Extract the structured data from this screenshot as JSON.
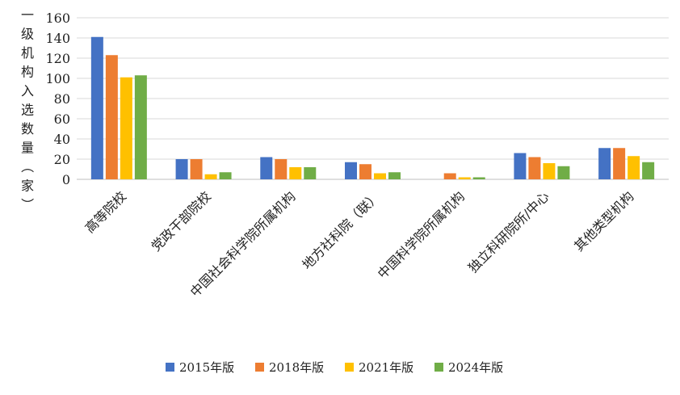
{
  "chart_data": {
    "type": "bar",
    "ylabel": "一级机构入选数量（家）",
    "categories": [
      "高等院校",
      "党政干部院校",
      "中国社会科学院所属机构",
      "地方社科院（联）",
      "中国科学院所属机构",
      "独立科研院所/中心",
      "其他类型机构"
    ],
    "series": [
      {
        "name": "2015年版",
        "color": "#4472C4",
        "values": [
          141,
          20,
          22,
          17,
          0,
          26,
          31
        ]
      },
      {
        "name": "2018年版",
        "color": "#ED7D31",
        "values": [
          123,
          20,
          20,
          15,
          6,
          22,
          31
        ]
      },
      {
        "name": "2021年版",
        "color": "#FFC000",
        "values": [
          101,
          5,
          12,
          6,
          2,
          16,
          23
        ]
      },
      {
        "name": "2024年版",
        "color": "#70AD47",
        "values": [
          103,
          7,
          12,
          7,
          2,
          13,
          17
        ]
      }
    ],
    "ylim": [
      0,
      160
    ],
    "yticks": [
      0,
      20,
      40,
      60,
      80,
      100,
      120,
      140,
      160
    ],
    "grid": true,
    "legend_position": "bottom"
  }
}
